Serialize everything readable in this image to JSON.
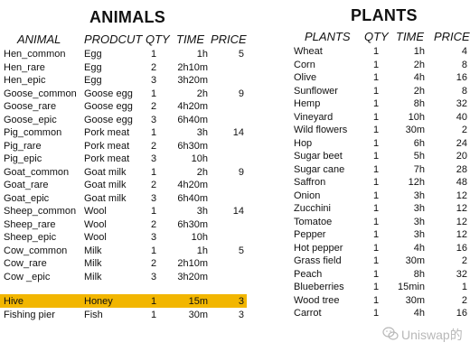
{
  "animals": {
    "title": "ANIMALS",
    "headers": [
      "ANIMAL",
      "PRODCUT",
      "QTY",
      "TIME",
      "PRICE"
    ],
    "rows": [
      {
        "name": "Hen_common",
        "product": "Egg",
        "qty": "1",
        "time": "1h",
        "price": "5"
      },
      {
        "name": "Hen_rare",
        "product": "Egg",
        "qty": "2",
        "time": "2h10m",
        "price": ""
      },
      {
        "name": "Hen_epic",
        "product": "Egg",
        "qty": "3",
        "time": "3h20m",
        "price": ""
      },
      {
        "name": "Goose_common",
        "product": "Goose egg",
        "qty": "1",
        "time": "2h",
        "price": "9"
      },
      {
        "name": "Goose_rare",
        "product": "Goose egg",
        "qty": "2",
        "time": "4h20m",
        "price": ""
      },
      {
        "name": "Goose_epic",
        "product": "Goose egg",
        "qty": "3",
        "time": "6h40m",
        "price": ""
      },
      {
        "name": "Pig_common",
        "product": "Pork meat",
        "qty": "1",
        "time": "3h",
        "price": "14"
      },
      {
        "name": "Pig_rare",
        "product": "Pork meat",
        "qty": "2",
        "time": "6h30m",
        "price": ""
      },
      {
        "name": "Pig_epic",
        "product": "Pork meat",
        "qty": "3",
        "time": "10h",
        "price": ""
      },
      {
        "name": "Goat_common",
        "product": "Goat milk",
        "qty": "1",
        "time": "2h",
        "price": "9"
      },
      {
        "name": "Goat_rare",
        "product": "Goat milk",
        "qty": "2",
        "time": "4h20m",
        "price": ""
      },
      {
        "name": "Goat_epic",
        "product": "Goat milk",
        "qty": "3",
        "time": "6h40m",
        "price": ""
      },
      {
        "name": "Sheep_common",
        "product": "Wool",
        "qty": "1",
        "time": "3h",
        "price": "14"
      },
      {
        "name": "Sheep_rare",
        "product": "Wool",
        "qty": "2",
        "time": "6h30m",
        "price": ""
      },
      {
        "name": "Sheep_epic",
        "product": "Wool",
        "qty": "3",
        "time": "10h",
        "price": ""
      },
      {
        "name": "Cow_common",
        "product": "Milk",
        "qty": "1",
        "time": "1h",
        "price": "5"
      },
      {
        "name": "Cow_rare",
        "product": "Milk",
        "qty": "2",
        "time": "2h10m",
        "price": ""
      },
      {
        "name": "Cow _epic",
        "product": "Milk",
        "qty": "3",
        "time": "3h20m",
        "price": ""
      }
    ],
    "extra_rows": [
      {
        "name": "Hive",
        "product": "Honey",
        "qty": "1",
        "time": "15m",
        "price": "3"
      },
      {
        "name": "Fishing pier",
        "product": "Fish",
        "qty": "1",
        "time": "30m",
        "price": "3"
      }
    ],
    "highlight_color": "#f2b600"
  },
  "plants": {
    "title": "PLANTS",
    "headers": [
      "PLANTS",
      "QTY",
      "TIME",
      "PRICE"
    ],
    "rows": [
      {
        "name": "Wheat",
        "qty": "1",
        "time": "1h",
        "price": "4"
      },
      {
        "name": "Corn",
        "qty": "1",
        "time": "2h",
        "price": "8"
      },
      {
        "name": "Olive",
        "qty": "1",
        "time": "4h",
        "price": "16"
      },
      {
        "name": "Sunflower",
        "qty": "1",
        "time": "2h",
        "price": "8"
      },
      {
        "name": "Hemp",
        "qty": "1",
        "time": "8h",
        "price": "32"
      },
      {
        "name": "Vineyard",
        "qty": "1",
        "time": "10h",
        "price": "40"
      },
      {
        "name": "Wild flowers",
        "qty": "1",
        "time": "30m",
        "price": "2"
      },
      {
        "name": "Hop",
        "qty": "1",
        "time": "6h",
        "price": "24"
      },
      {
        "name": "Sugar beet",
        "qty": "1",
        "time": "5h",
        "price": "20"
      },
      {
        "name": "Sugar cane",
        "qty": "1",
        "time": "7h",
        "price": "28"
      },
      {
        "name": "Saffron",
        "qty": "1",
        "time": "12h",
        "price": "48"
      },
      {
        "name": "Onion",
        "qty": "1",
        "time": "3h",
        "price": "12"
      },
      {
        "name": "Zucchini",
        "qty": "1",
        "time": "3h",
        "price": "12"
      },
      {
        "name": "Tomatoe",
        "qty": "1",
        "time": "3h",
        "price": "12"
      },
      {
        "name": "Pepper",
        "qty": "1",
        "time": "3h",
        "price": "12"
      },
      {
        "name": "Hot pepper",
        "qty": "1",
        "time": "4h",
        "price": "16"
      },
      {
        "name": "Grass field",
        "qty": "1",
        "time": "30m",
        "price": "2"
      },
      {
        "name": "Peach",
        "qty": "1",
        "time": "8h",
        "price": "32"
      },
      {
        "name": "Blueberries",
        "qty": "1",
        "time": "15min",
        "price": "1"
      },
      {
        "name": "Wood tree",
        "qty": "1",
        "time": "30m",
        "price": "2"
      },
      {
        "name": "Carrot",
        "qty": "1",
        "time": "4h",
        "price": "16"
      }
    ]
  },
  "watermark": {
    "text": "Uniswap的",
    "icon": "wechat-icon"
  }
}
